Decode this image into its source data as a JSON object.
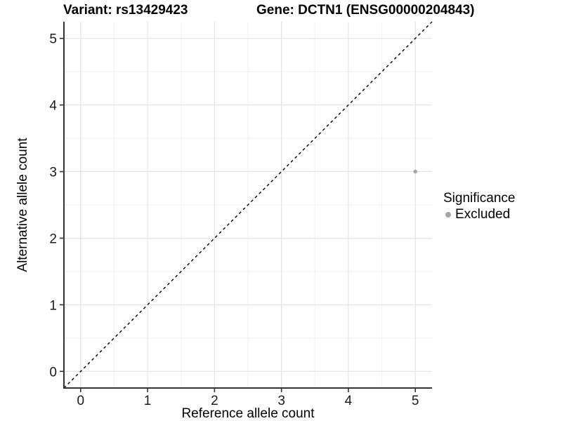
{
  "header": {
    "variant_title": "Variant: rs13429423",
    "gene_title": "Gene: DCTN1 (ENSG00000204843)"
  },
  "legend": {
    "title": "Significance",
    "items": [
      {
        "label": "Excluded",
        "color": "#a6a6a6"
      }
    ]
  },
  "chart_data": {
    "type": "scatter",
    "xlabel": "Reference allele count",
    "ylabel": "Alternative allele count",
    "xlim": [
      -0.25,
      5.25
    ],
    "ylim": [
      -0.25,
      5.25
    ],
    "x_ticks": [
      0,
      1,
      2,
      3,
      4,
      5
    ],
    "y_ticks": [
      0,
      1,
      2,
      3,
      4,
      5
    ],
    "x_minor_ticks": [
      0.5,
      1.5,
      2.5,
      3.5,
      4.5
    ],
    "y_minor_ticks": [
      0.5,
      1.5,
      2.5,
      3.5,
      4.5
    ],
    "grid": true,
    "legend_position": "right",
    "series": [
      {
        "name": "Excluded",
        "color": "#a6a6a6",
        "points": [
          {
            "x": 5,
            "y": 3
          }
        ]
      }
    ],
    "reference_line": {
      "type": "identity",
      "style": "dashed",
      "color": "#000000"
    }
  },
  "colors": {
    "background": "#ffffff",
    "grid_major": "#e4e4e4",
    "grid_minor": "#f2f2f2",
    "axis_line": "#333333",
    "tick_mark": "#333333",
    "tick_label": "#1a1a1a"
  }
}
